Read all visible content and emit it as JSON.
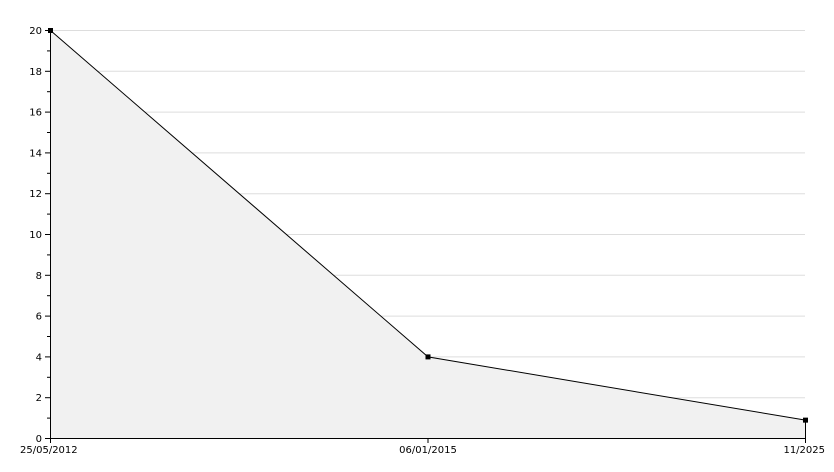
{
  "chart_data": {
    "type": "area",
    "title": "",
    "xlabel": "",
    "ylabel": "",
    "categories": [
      "25/05/2012",
      "06/01/2015",
      "11/2025"
    ],
    "values": [
      20,
      4,
      0.9
    ],
    "ylim": [
      0,
      20
    ],
    "y_ticks": [
      0,
      2,
      4,
      6,
      8,
      10,
      12,
      14,
      16,
      18,
      20
    ],
    "grid": true,
    "legend": "none",
    "colors": {
      "line": "#000000",
      "fill": "#f1f1f1",
      "grid": "#dddddd",
      "axis": "#000000"
    }
  }
}
